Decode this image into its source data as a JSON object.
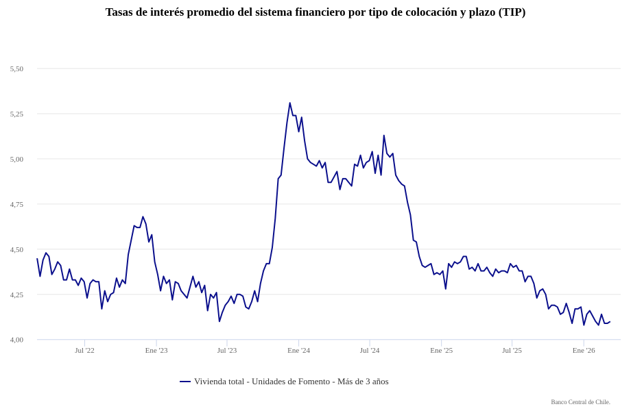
{
  "chart_data": {
    "type": "line",
    "title": "Tasas de interés promedio del sistema financiero por tipo de colocación y plazo (TIP)",
    "xlabel": "",
    "ylabel": "",
    "ylim": [
      4.0,
      5.5
    ],
    "yticks": [
      "4,00",
      "4,25",
      "4,50",
      "4,75",
      "5,00",
      "5,25",
      "5,50"
    ],
    "ytick_values": [
      4.0,
      4.25,
      4.5,
      4.75,
      5.0,
      5.25,
      5.5
    ],
    "xticks": [
      "Jul '22",
      "Ene '23",
      "Jul '23",
      "Ene '24",
      "Jul '24",
      "Ene '25",
      "Jul '25",
      "Ene '26"
    ],
    "xtick_dates": [
      "2022-07-01",
      "2023-01-01",
      "2023-07-01",
      "2024-01-01",
      "2024-07-01",
      "2025-01-01",
      "2025-07-01",
      "2026-01-01"
    ],
    "x_first": "2022-03-01",
    "x_last": "2026-03-10",
    "frequency": "weekly",
    "grid": true,
    "legend_position": "bottom",
    "series": [
      {
        "name": "Vivienda total - Unidades de Fomento - Más de 3 años",
        "color": "#0a0f8c",
        "values": [
          4.45,
          4.35,
          4.44,
          4.48,
          4.46,
          4.36,
          4.39,
          4.43,
          4.41,
          4.33,
          4.33,
          4.39,
          4.33,
          4.33,
          4.3,
          4.34,
          4.32,
          4.23,
          4.31,
          4.33,
          4.32,
          4.32,
          4.17,
          4.27,
          4.21,
          4.25,
          4.26,
          4.34,
          4.29,
          4.33,
          4.31,
          4.47,
          4.55,
          4.63,
          4.62,
          4.62,
          4.68,
          4.64,
          4.54,
          4.58,
          4.43,
          4.36,
          4.27,
          4.35,
          4.31,
          4.33,
          4.22,
          4.32,
          4.31,
          4.27,
          4.25,
          4.23,
          4.29,
          4.35,
          4.29,
          4.32,
          4.26,
          4.3,
          4.16,
          4.25,
          4.23,
          4.26,
          4.1,
          4.15,
          4.19,
          4.21,
          4.24,
          4.2,
          4.25,
          4.25,
          4.24,
          4.18,
          4.17,
          4.21,
          4.27,
          4.21,
          4.31,
          4.38,
          4.42,
          4.42,
          4.51,
          4.67,
          4.89,
          4.91,
          5.06,
          5.2,
          5.31,
          5.24,
          5.24,
          5.15,
          5.23,
          5.1,
          5.0,
          4.98,
          4.97,
          4.96,
          4.99,
          4.95,
          4.98,
          4.87,
          4.87,
          4.9,
          4.93,
          4.83,
          4.89,
          4.89,
          4.87,
          4.85,
          4.97,
          4.96,
          5.02,
          4.95,
          4.98,
          4.99,
          5.04,
          4.92,
          5.02,
          4.91,
          5.13,
          5.03,
          5.01,
          5.03,
          4.91,
          4.88,
          4.86,
          4.85,
          4.76,
          4.69,
          4.55,
          4.54,
          4.46,
          4.41,
          4.4,
          4.41,
          4.42,
          4.36,
          4.37,
          4.36,
          4.38,
          4.28,
          4.42,
          4.4,
          4.43,
          4.42,
          4.43,
          4.46,
          4.46,
          4.39,
          4.4,
          4.38,
          4.42,
          4.38,
          4.38,
          4.4,
          4.37,
          4.35,
          4.39,
          4.37,
          4.38,
          4.38,
          4.37,
          4.42,
          4.4,
          4.41,
          4.38,
          4.38,
          4.32,
          4.35,
          4.35,
          4.31,
          4.23,
          4.27,
          4.28,
          4.25,
          4.17,
          4.19,
          4.19,
          4.18,
          4.14,
          4.15,
          4.2,
          4.15,
          4.09,
          4.17,
          4.17,
          4.18,
          4.08,
          4.14,
          4.16,
          4.13,
          4.1,
          4.08,
          4.14,
          4.09,
          4.09,
          4.1
        ]
      }
    ]
  },
  "credits": "Banco Central de Chile."
}
